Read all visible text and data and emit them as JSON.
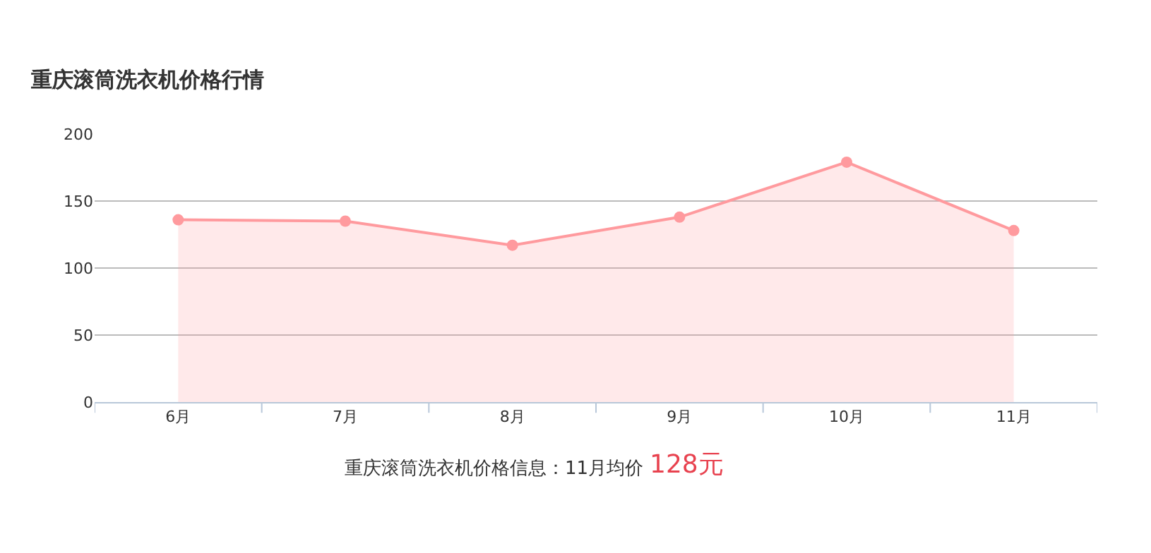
{
  "chart_data": {
    "type": "area",
    "title": "重庆滚筒洗衣机价格行情",
    "categories": [
      "6月",
      "7月",
      "8月",
      "9月",
      "10月",
      "11月"
    ],
    "series": [
      {
        "color": "#ff9a9e",
        "values": [
          136,
          135,
          117,
          138,
          179,
          128
        ]
      }
    ],
    "ylim": [
      0,
      200
    ],
    "yticks": [
      0,
      50,
      100,
      150,
      200
    ],
    "grid": "y",
    "marker": "circle",
    "line_style": "solid",
    "annotations": [
      "重庆滚筒洗衣机价格信息：11月均价",
      "128元"
    ]
  }
}
